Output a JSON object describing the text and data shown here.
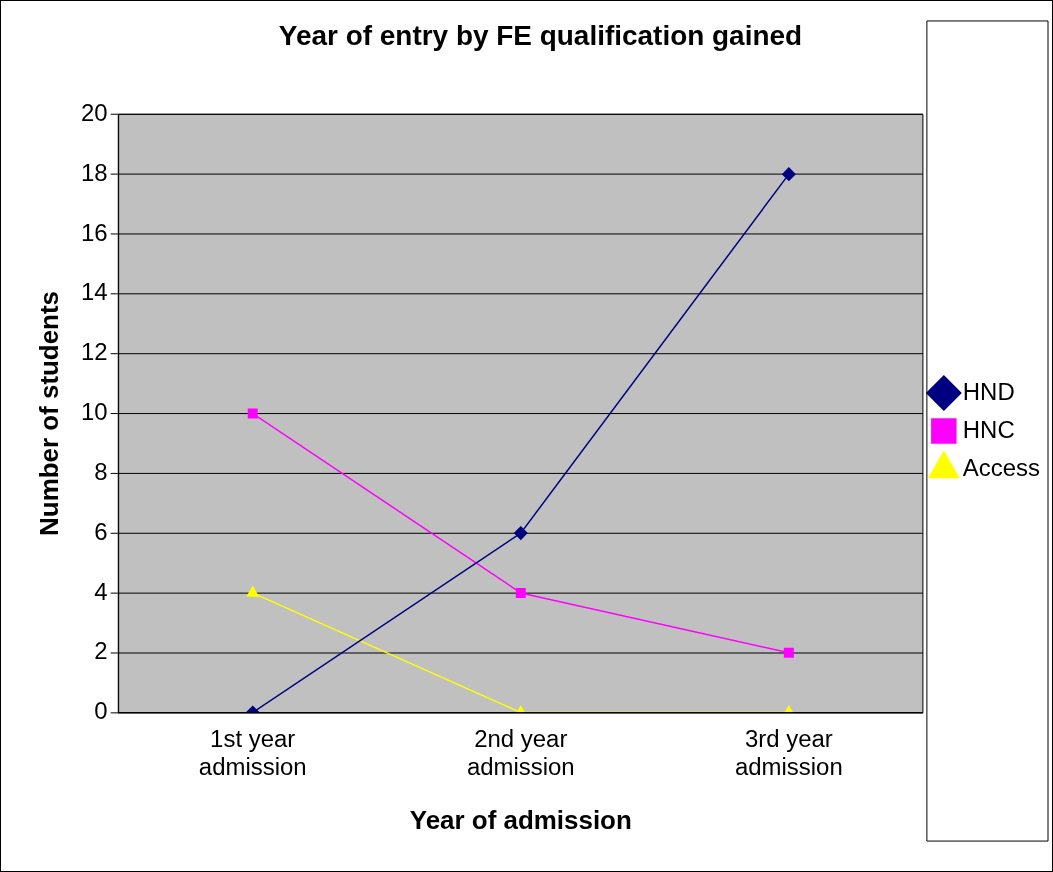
{
  "chart_data": {
    "type": "line",
    "title": "Year of entry by FE qualification gained",
    "xlabel": "Year of admission",
    "ylabel": "Number of students",
    "categories": [
      "1st year admission",
      "2nd year admission",
      "3rd year admission"
    ],
    "series": [
      {
        "name": "HND",
        "color": "#000080",
        "values": [
          0,
          6,
          18
        ],
        "marker": "diamond"
      },
      {
        "name": "HNC",
        "color": "#ff00ff",
        "values": [
          10,
          4,
          2
        ],
        "marker": "square"
      },
      {
        "name": "Access",
        "color": "#ffff00",
        "values": [
          4,
          0,
          0
        ],
        "marker": "triangle"
      }
    ],
    "ylim": [
      0,
      20
    ],
    "yticks": [
      0,
      2,
      4,
      6,
      8,
      10,
      12,
      14,
      16,
      18,
      20
    ],
    "grid": "y",
    "legend": "right",
    "line_style": "solid"
  }
}
